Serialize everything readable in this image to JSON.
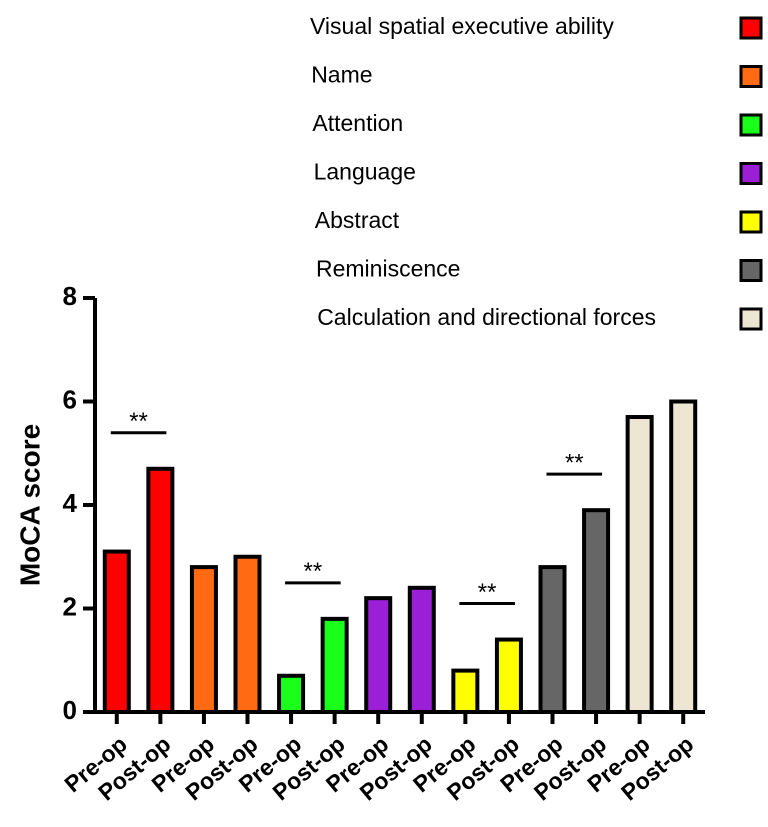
{
  "chart_data": {
    "type": "bar",
    "y_label": "MoCA score",
    "categories": [
      "Pre-op",
      "Post-op",
      "Pre-op",
      "Post-op",
      "Pre-op",
      "Post-op",
      "Pre-op",
      "Post-op",
      "Pre-op",
      "Post-op",
      "Pre-op",
      "Post-op",
      "Pre-op",
      "Post-op"
    ],
    "series": [
      {
        "name": "Visual spatial executive ability",
        "color": "#ff0000",
        "values": [
          3.1,
          4.7,
          null,
          null,
          null,
          null,
          null,
          null,
          null,
          null,
          null,
          null,
          null,
          null
        ]
      },
      {
        "name": "Name",
        "color": "#ff6a13",
        "values": [
          null,
          null,
          2.8,
          3.0,
          null,
          null,
          null,
          null,
          null,
          null,
          null,
          null,
          null,
          null
        ]
      },
      {
        "name": "Attention",
        "color": "#1aff1a",
        "values": [
          null,
          null,
          null,
          null,
          0.7,
          1.8,
          null,
          null,
          null,
          null,
          null,
          null,
          null,
          null
        ]
      },
      {
        "name": "Language",
        "color": "#9b1fd6",
        "values": [
          null,
          null,
          null,
          null,
          null,
          null,
          2.2,
          2.4,
          null,
          null,
          null,
          null,
          null,
          null
        ]
      },
      {
        "name": "Abstract",
        "color": "#ffff00",
        "values": [
          null,
          null,
          null,
          null,
          null,
          null,
          null,
          null,
          0.8,
          1.4,
          null,
          null,
          null,
          null
        ]
      },
      {
        "name": "Reminiscence",
        "color": "#666666",
        "values": [
          null,
          null,
          null,
          null,
          null,
          null,
          null,
          null,
          null,
          null,
          2.8,
          3.9,
          null,
          null
        ]
      },
      {
        "name": "Calculation and directional forces",
        "color": "#ede6d3",
        "values": [
          null,
          null,
          null,
          null,
          null,
          null,
          null,
          null,
          null,
          null,
          null,
          null,
          5.7,
          6.0
        ]
      }
    ],
    "annotations": [
      {
        "text": "**",
        "from": 0,
        "to": 1
      },
      {
        "text": "**",
        "from": 4,
        "to": 5
      },
      {
        "text": "**",
        "from": 8,
        "to": 9
      },
      {
        "text": "**",
        "from": 10,
        "to": 11
      }
    ],
    "ylim": [
      0,
      8
    ],
    "yticks": [
      0,
      2,
      4,
      6,
      8
    ],
    "legend": "top-right"
  }
}
